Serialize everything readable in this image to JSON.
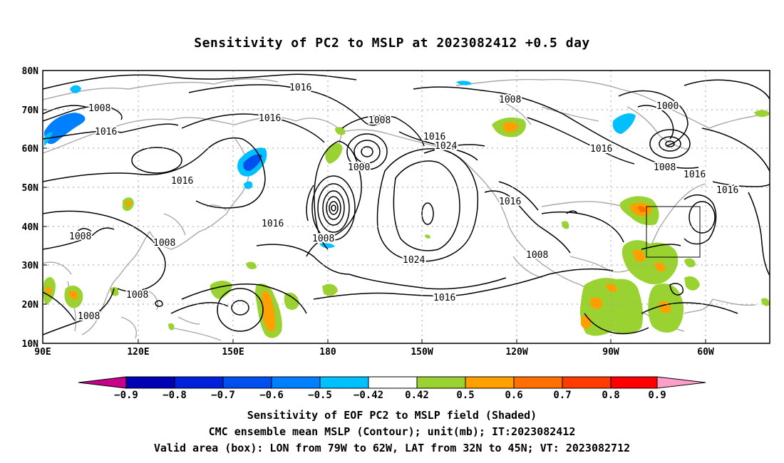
{
  "title": "Sensitivity of PC2 to MSLP at 2023082412 +0.5 day",
  "lat_labels": [
    "80N",
    "70N",
    "60N",
    "50N",
    "40N",
    "30N",
    "20N",
    "10N"
  ],
  "lon_labels": [
    "90E",
    "120E",
    "150E",
    "180",
    "150W",
    "120W",
    "90W",
    "60W"
  ],
  "contour_labels": [
    "1016",
    "1008",
    "1016",
    "1016",
    "1008",
    "1016",
    "1024",
    "1000",
    "1016",
    "1008",
    "1008",
    "1024",
    "1016",
    "1016",
    "1008",
    "1008",
    "1008",
    "1008",
    "1016",
    "1000",
    "1016",
    "1008",
    "1016",
    "1016",
    "1008"
  ],
  "colorbar": {
    "ticks": [
      "−0.9",
      "−0.8",
      "−0.7",
      "−0.6",
      "−0.5",
      "−0.42",
      "0.42",
      "0.5",
      "0.6",
      "0.7",
      "0.8",
      "0.9"
    ],
    "colors": [
      "#c8008c",
      "#0000b4",
      "#0020dc",
      "#0050f0",
      "#0080ff",
      "#00c0ff",
      "#ffffff",
      "#9ad232",
      "#ffa000",
      "#ff7000",
      "#ff3c00",
      "#ff0000",
      "#ff9ec8"
    ]
  },
  "captions": [
    "Sensitivity of EOF PC2 to MSLP field (Shaded)",
    "CMC ensemble mean MSLP (Contour); unit(mb); IT:2023082412",
    "Valid area (box): LON from 79W to 62W, LAT from 32N to 45N; VT: 2023082712"
  ]
}
